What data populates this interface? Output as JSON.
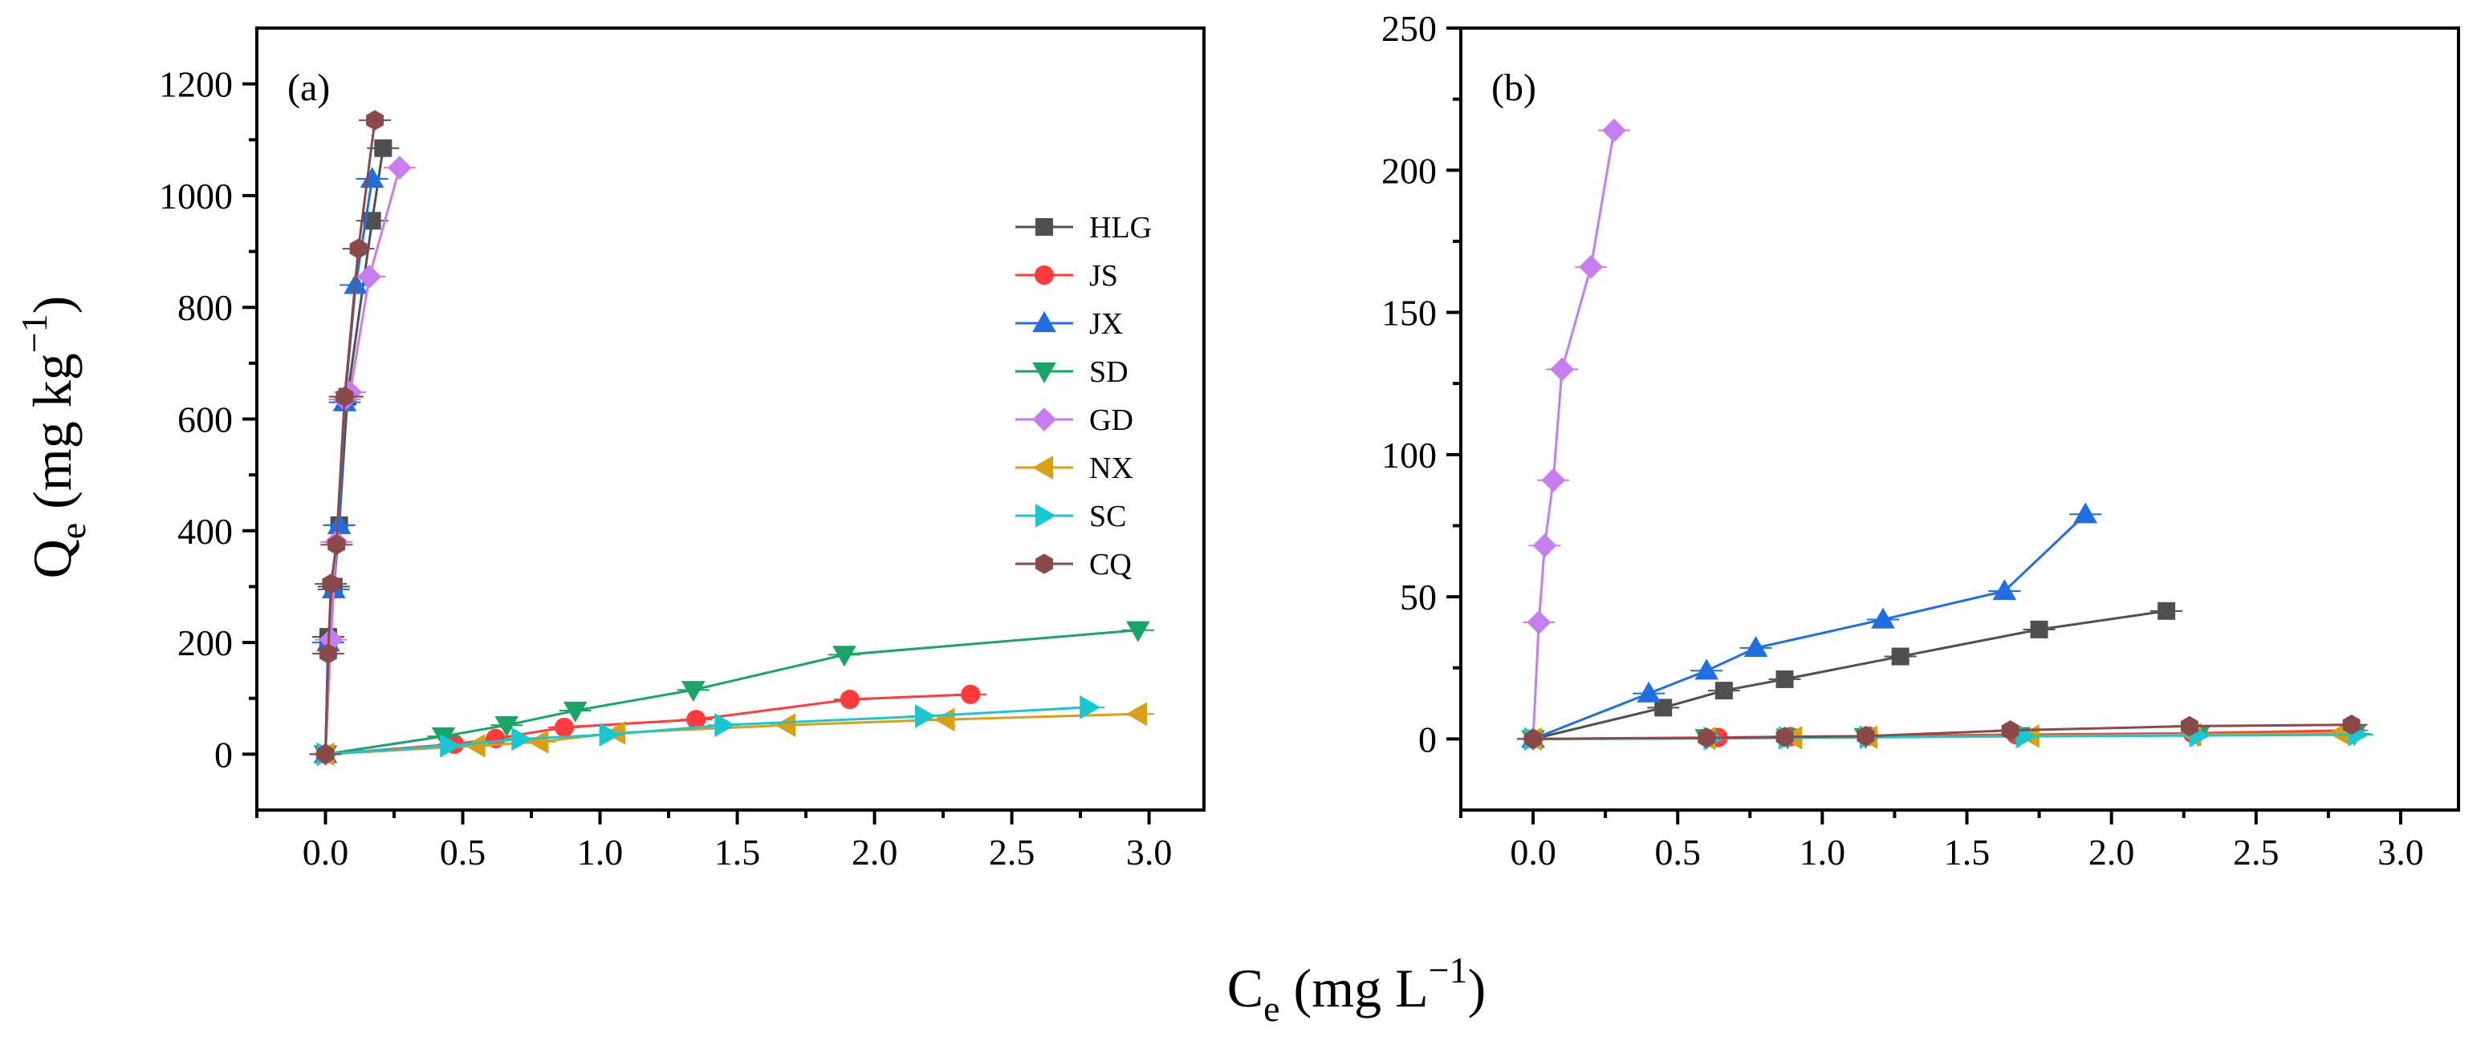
{
  "figure": {
    "ylabel_main": "Q",
    "ylabel_sub": "e",
    "ylabel_unit_open": " (mg kg",
    "ylabel_unit_sup": "−1",
    "ylabel_unit_close": ")",
    "xlabel_main": "C",
    "xlabel_sub": "e",
    "xlabel_unit_open": " (mg L",
    "xlabel_unit_sup": "−1",
    "xlabel_unit_close": ")"
  },
  "chart_data": [
    {
      "id": "a",
      "type": "line",
      "panel_label": "(a)",
      "xlim": [
        -0.25,
        3.2
      ],
      "ylim": [
        -100,
        1300
      ],
      "xticks": [
        0.0,
        0.5,
        1.0,
        1.5,
        2.0,
        2.5,
        3.0
      ],
      "xtick_labels": [
        "0.0",
        "0.5",
        "1.0",
        "1.5",
        "2.0",
        "2.5",
        "3.0"
      ],
      "yticks": [
        0,
        200,
        400,
        600,
        800,
        1000,
        1200
      ],
      "ytick_labels": [
        "0",
        "200",
        "400",
        "600",
        "800",
        "1000",
        "1200"
      ],
      "legend_position": "right-center",
      "series": [
        {
          "name": "HLG",
          "color": "#505050",
          "marker": "square",
          "x": [
            0.0,
            0.01,
            0.03,
            0.05,
            0.08,
            0.17,
            0.21
          ],
          "y": [
            0,
            210,
            300,
            410,
            640,
            955,
            1085
          ]
        },
        {
          "name": "JS",
          "color": "#ff3b3b",
          "marker": "circle",
          "x": [
            0.0,
            0.47,
            0.62,
            0.87,
            1.35,
            1.91,
            2.35
          ],
          "y": [
            0,
            18,
            28,
            48,
            62,
            98,
            107
          ]
        },
        {
          "name": "JX",
          "color": "#1f6fe0",
          "marker": "triangle-up",
          "x": [
            0.0,
            0.01,
            0.03,
            0.05,
            0.07,
            0.11,
            0.17
          ],
          "y": [
            0,
            200,
            295,
            410,
            630,
            840,
            1030
          ]
        },
        {
          "name": "SD",
          "color": "#1aa566",
          "marker": "triangle-down",
          "x": [
            0.0,
            0.43,
            0.66,
            0.91,
            1.34,
            1.89,
            2.96
          ],
          "y": [
            0,
            32,
            52,
            78,
            115,
            178,
            222
          ]
        },
        {
          "name": "GD",
          "color": "#c77cf0",
          "marker": "diamond",
          "x": [
            0.0,
            0.02,
            0.04,
            0.07,
            0.09,
            0.16,
            0.27
          ],
          "y": [
            0,
            205,
            380,
            635,
            648,
            855,
            1050
          ]
        },
        {
          "name": "NX",
          "color": "#d9a016",
          "marker": "triangle-left",
          "x": [
            0.0,
            0.55,
            0.78,
            1.06,
            1.68,
            2.26,
            2.96
          ],
          "y": [
            0,
            15,
            22,
            38,
            52,
            62,
            72
          ]
        },
        {
          "name": "SC",
          "color": "#19c7d1",
          "marker": "triangle-right",
          "x": [
            0.0,
            0.45,
            0.71,
            1.03,
            1.45,
            2.18,
            2.78
          ],
          "y": [
            0,
            15,
            27,
            35,
            52,
            68,
            84
          ]
        },
        {
          "name": "CQ",
          "color": "#8b4a4a",
          "marker": "hexagon",
          "x": [
            0.0,
            0.01,
            0.02,
            0.04,
            0.07,
            0.12,
            0.18
          ],
          "y": [
            0,
            180,
            305,
            375,
            640,
            905,
            1135
          ]
        }
      ]
    },
    {
      "id": "b",
      "type": "line",
      "panel_label": "(b)",
      "xlim": [
        -0.25,
        3.2
      ],
      "ylim": [
        -25,
        250
      ],
      "xticks": [
        0.0,
        0.5,
        1.0,
        1.5,
        2.0,
        2.5,
        3.0
      ],
      "xtick_labels": [
        "0.0",
        "0.5",
        "1.0",
        "1.5",
        "2.0",
        "2.5",
        "3.0"
      ],
      "yticks": [
        0,
        50,
        100,
        150,
        200,
        250
      ],
      "ytick_labels": [
        "0",
        "50",
        "100",
        "150",
        "200",
        "250"
      ],
      "series": [
        {
          "name": "HLG",
          "color": "#505050",
          "marker": "square",
          "x": [
            0.0,
            0.45,
            0.66,
            0.87,
            1.27,
            1.75,
            2.19
          ],
          "y": [
            0,
            11,
            17,
            21,
            29,
            38.5,
            45
          ]
        },
        {
          "name": "JS",
          "color": "#ff3b3b",
          "marker": "circle",
          "x": [
            0.0,
            0.64,
            0.89,
            1.16,
            1.67,
            2.28,
            2.83
          ],
          "y": [
            0,
            0.5,
            0.8,
            1.0,
            1.5,
            2.0,
            3.0
          ]
        },
        {
          "name": "JX",
          "color": "#1f6fe0",
          "marker": "triangle-up",
          "x": [
            0.0,
            0.4,
            0.6,
            0.77,
            1.21,
            1.63,
            1.91
          ],
          "y": [
            0,
            16,
            24,
            32,
            42,
            52,
            79
          ]
        },
        {
          "name": "SD",
          "color": "#1aa566",
          "marker": "triangle-down",
          "x": [
            0.0,
            0.6,
            0.88,
            1.15,
            1.68,
            2.3,
            2.84
          ],
          "y": [
            0,
            0.3,
            0.5,
            0.7,
            1.0,
            1.4,
            1.8
          ]
        },
        {
          "name": "GD",
          "color": "#c77cf0",
          "marker": "diamond",
          "x": [
            0.0,
            0.02,
            0.04,
            0.07,
            0.1,
            0.2,
            0.28
          ],
          "y": [
            0,
            41,
            68,
            91,
            130,
            166,
            214
          ]
        },
        {
          "name": "NX",
          "color": "#d9a016",
          "marker": "triangle-left",
          "x": [
            0.0,
            0.6,
            0.9,
            1.16,
            1.72,
            2.28,
            2.79
          ],
          "y": [
            0,
            0.2,
            0.4,
            0.6,
            1.0,
            1.5,
            2.0
          ]
        },
        {
          "name": "SC",
          "color": "#19c7d1",
          "marker": "triangle-right",
          "x": [
            0.0,
            0.62,
            0.88,
            1.16,
            1.7,
            2.3,
            2.85
          ],
          "y": [
            0,
            0.2,
            0.4,
            0.6,
            0.9,
            1.2,
            1.5
          ]
        },
        {
          "name": "CQ",
          "color": "#8b4a4a",
          "marker": "hexagon",
          "x": [
            0.0,
            0.6,
            0.87,
            1.15,
            1.65,
            2.27,
            2.83
          ],
          "y": [
            0,
            0.4,
            0.7,
            1.0,
            3.0,
            4.5,
            5.0
          ]
        }
      ]
    }
  ]
}
